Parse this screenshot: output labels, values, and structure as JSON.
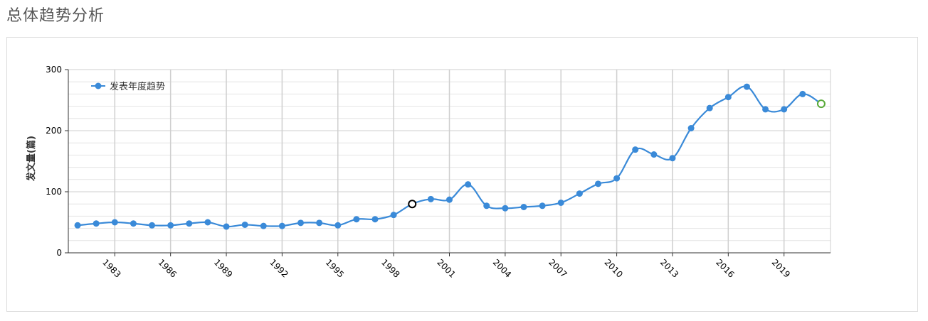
{
  "page": {
    "title": "总体趋势分析"
  },
  "chart_data": {
    "type": "line",
    "title": "",
    "xlabel": "",
    "ylabel": "发文量(篇)",
    "ylim": [
      0,
      300
    ],
    "yticks": [
      0,
      100,
      200,
      300
    ],
    "xlim": [
      1980.5,
      2021.5
    ],
    "xticks": [
      1983,
      1986,
      1989,
      1992,
      1995,
      1998,
      2001,
      2004,
      2007,
      2010,
      2013,
      2016,
      2019
    ],
    "grid": true,
    "legend_position": "top-left",
    "smooth": true,
    "colors": {
      "line": "#3a8ad8",
      "highlight_marker": "#000000",
      "last_marker": "#5aaa3a",
      "grid_major": "#cfcfcf",
      "grid_minor": "#e4e4e4",
      "axis": "#333333"
    },
    "series": [
      {
        "name": "发表年度趋势",
        "x": [
          1981,
          1982,
          1983,
          1984,
          1985,
          1986,
          1987,
          1988,
          1989,
          1990,
          1991,
          1992,
          1993,
          1994,
          1995,
          1996,
          1997,
          1998,
          1999,
          2000,
          2001,
          2002,
          2003,
          2004,
          2005,
          2006,
          2007,
          2008,
          2009,
          2010,
          2011,
          2012,
          2013,
          2014,
          2015,
          2016,
          2017,
          2018,
          2019,
          2020,
          2021
        ],
        "values": [
          45,
          48,
          50,
          48,
          45,
          45,
          48,
          50,
          43,
          46,
          44,
          44,
          49,
          49,
          45,
          55,
          55,
          62,
          80,
          88,
          87,
          112,
          77,
          73,
          75,
          77,
          82,
          97,
          113,
          122,
          169,
          161,
          155,
          204,
          237,
          255,
          272,
          235,
          235,
          260,
          244
        ]
      }
    ],
    "highlighted_points": [
      {
        "x": 1999,
        "style": "hollow-black"
      },
      {
        "x": 2021,
        "style": "hollow-green"
      }
    ]
  }
}
